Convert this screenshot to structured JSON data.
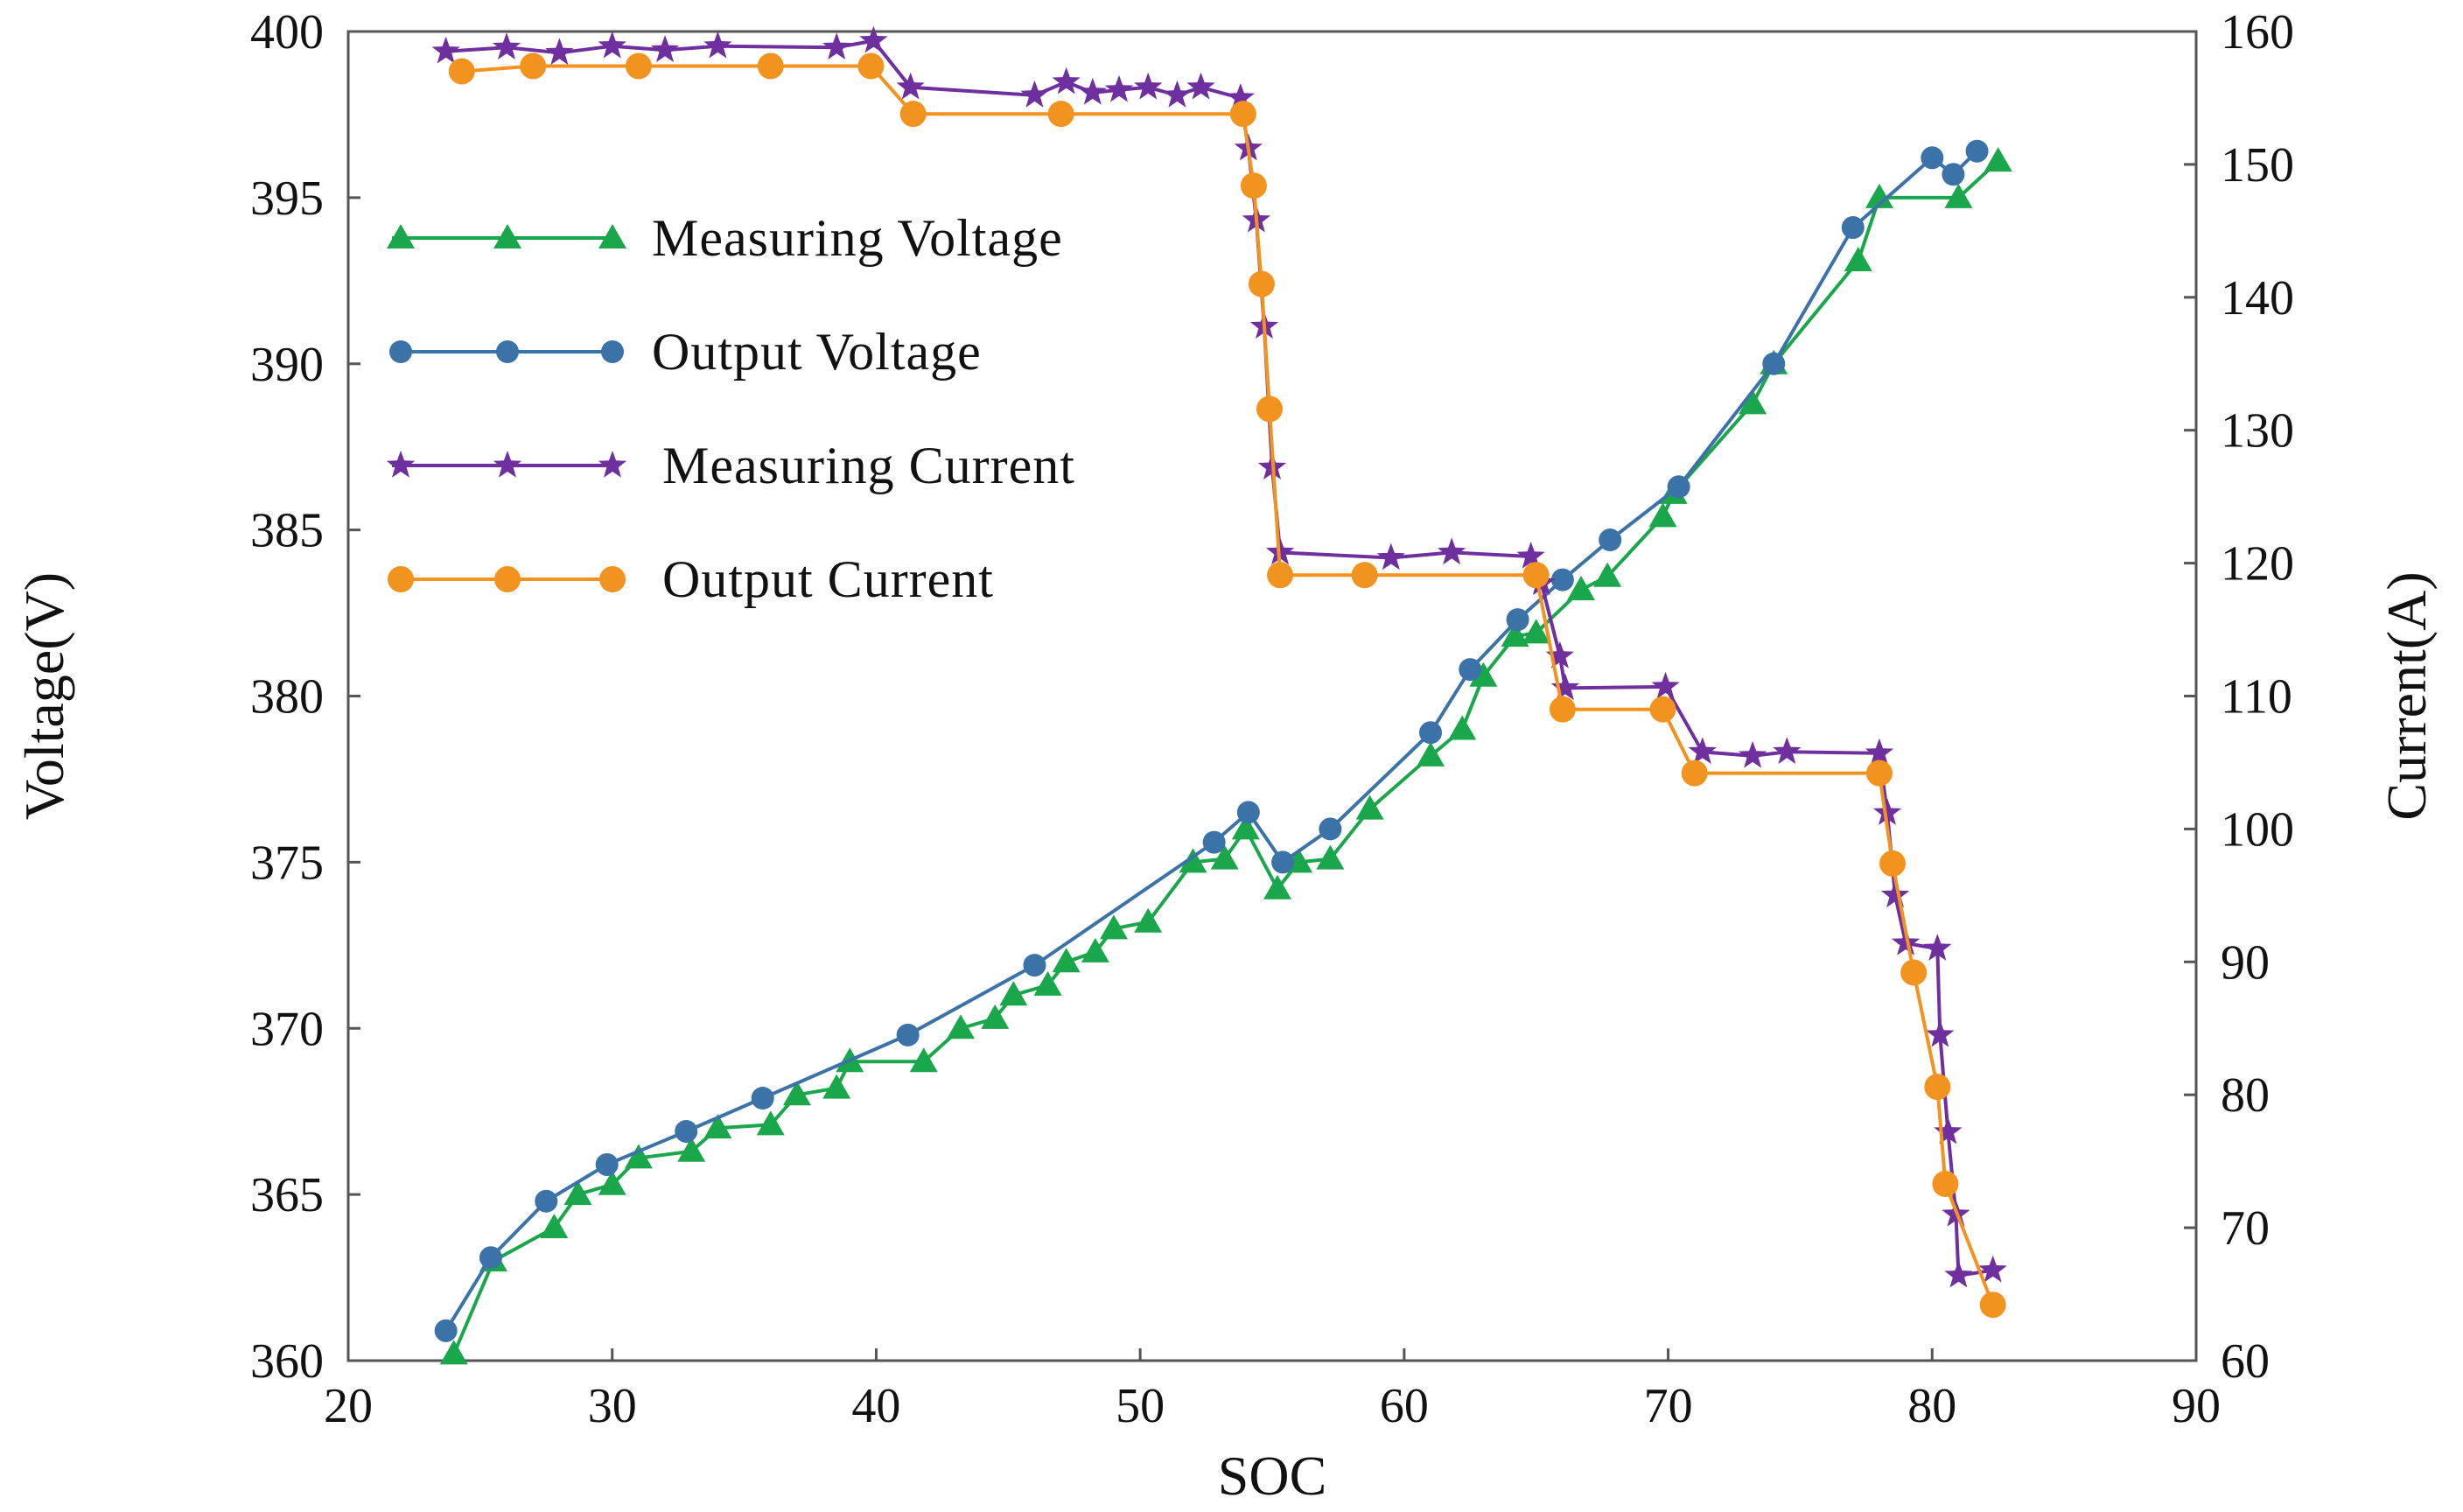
{
  "chart_data": {
    "type": "line",
    "title": "",
    "xlabel": "SOC",
    "ylabel_left": "Voltage(V)",
    "ylabel_right": "Current(A)",
    "xlim": [
      20,
      90
    ],
    "ylim_left": [
      360,
      400
    ],
    "ylim_right": [
      60,
      160
    ],
    "x_ticks": [
      "20",
      "30",
      "40",
      "50",
      "60",
      "70",
      "80",
      "90"
    ],
    "left_ticks": [
      "360",
      "365",
      "370",
      "375",
      "380",
      "385",
      "390",
      "395",
      "400"
    ],
    "right_ticks": [
      "60",
      "70",
      "80",
      "90",
      "100",
      "110",
      "120",
      "130",
      "140",
      "150",
      "160"
    ],
    "grid": false,
    "legend_position": "top-left",
    "series": [
      {
        "name": "Measuring Voltage",
        "axis": "left",
        "marker": "triangle",
        "color": "#1aa64a",
        "points": [
          [
            24,
            360.2
          ],
          [
            25.5,
            363
          ],
          [
            27.8,
            364
          ],
          [
            28.7,
            365
          ],
          [
            30,
            365.3
          ],
          [
            31,
            366.1
          ],
          [
            33,
            366.3
          ],
          [
            34,
            367
          ],
          [
            36,
            367.1
          ],
          [
            37,
            368
          ],
          [
            38.5,
            368.2
          ],
          [
            39,
            369
          ],
          [
            41.8,
            369
          ],
          [
            43.2,
            370
          ],
          [
            44.5,
            370.3
          ],
          [
            45.2,
            371
          ],
          [
            46.5,
            371.3
          ],
          [
            47.2,
            372
          ],
          [
            48.3,
            372.3
          ],
          [
            49,
            373
          ],
          [
            50.3,
            373.2
          ],
          [
            52,
            375
          ],
          [
            53.2,
            375.1
          ],
          [
            54,
            376
          ],
          [
            55.2,
            374.2
          ],
          [
            56,
            375
          ],
          [
            57.2,
            375.1
          ],
          [
            58.7,
            376.6
          ],
          [
            61,
            378.2
          ],
          [
            62.2,
            379
          ],
          [
            63,
            380.6
          ],
          [
            64.2,
            381.8
          ],
          [
            65,
            381.9
          ],
          [
            66.7,
            383.2
          ],
          [
            67.7,
            383.6
          ],
          [
            69.8,
            385.4
          ],
          [
            70.2,
            386.1
          ],
          [
            73.2,
            388.8
          ],
          [
            74,
            390
          ],
          [
            77.2,
            393.1
          ],
          [
            78,
            395
          ],
          [
            81,
            395
          ],
          [
            82.5,
            396.1
          ]
        ]
      },
      {
        "name": "Output Voltage",
        "axis": "left",
        "marker": "circle",
        "color": "#3b72a8",
        "points": [
          [
            23.7,
            360.9
          ],
          [
            25.4,
            363.1
          ],
          [
            27.5,
            364.8
          ],
          [
            29.8,
            365.9
          ],
          [
            32.8,
            366.9
          ],
          [
            35.7,
            367.9
          ],
          [
            41.2,
            369.8
          ],
          [
            46,
            371.9
          ],
          [
            52.8,
            375.6
          ],
          [
            54.1,
            376.5
          ],
          [
            55.4,
            375
          ],
          [
            57.2,
            376
          ],
          [
            61,
            378.9
          ],
          [
            62.5,
            380.8
          ],
          [
            64.3,
            382.3
          ],
          [
            66,
            383.5
          ],
          [
            67.8,
            384.7
          ],
          [
            70.4,
            386.3
          ],
          [
            74,
            390
          ],
          [
            77,
            394.1
          ],
          [
            80,
            396.2
          ],
          [
            80.8,
            395.7
          ],
          [
            81.7,
            396.4
          ]
        ]
      },
      {
        "name": "Measuring Current",
        "axis": "right",
        "marker": "star",
        "color": "#6f2f9e",
        "points": [
          [
            23.7,
            158.5
          ],
          [
            26,
            158.8
          ],
          [
            28,
            158.4
          ],
          [
            30,
            158.9
          ],
          [
            32,
            158.6
          ],
          [
            34,
            158.9
          ],
          [
            38.5,
            158.8
          ],
          [
            39.9,
            159.3
          ],
          [
            41.3,
            155.8
          ],
          [
            46,
            155.2
          ],
          [
            47.2,
            156.2
          ],
          [
            48.2,
            155.4
          ],
          [
            49.2,
            155.6
          ],
          [
            50.3,
            155.8
          ],
          [
            51.4,
            155.2
          ],
          [
            52.3,
            155.8
          ],
          [
            53.8,
            155
          ],
          [
            54.1,
            151.2
          ],
          [
            54.4,
            145.8
          ],
          [
            54.7,
            137.8
          ],
          [
            55,
            127.2
          ],
          [
            55.3,
            120.8
          ],
          [
            59.5,
            120.4
          ],
          [
            61.8,
            120.8
          ],
          [
            64.8,
            120.5
          ],
          [
            65.2,
            118.5
          ],
          [
            65.9,
            113
          ],
          [
            66.1,
            110.6
          ],
          [
            69.9,
            110.7
          ],
          [
            71.3,
            105.8
          ],
          [
            73.2,
            105.5
          ],
          [
            74.5,
            105.8
          ],
          [
            78,
            105.7
          ],
          [
            78.3,
            101.2
          ],
          [
            78.6,
            95
          ],
          [
            79,
            91.4
          ],
          [
            80.2,
            91
          ],
          [
            80.3,
            84.5
          ],
          [
            80.6,
            77.2
          ],
          [
            80.9,
            71
          ],
          [
            81,
            66.4
          ],
          [
            82.3,
            66.8
          ]
        ]
      },
      {
        "name": "Output Current",
        "axis": "right",
        "marker": "circle",
        "color": "#f2921f",
        "points": [
          [
            24.3,
            157
          ],
          [
            27,
            157.4
          ],
          [
            31,
            157.4
          ],
          [
            36,
            157.4
          ],
          [
            39.8,
            157.4
          ],
          [
            41.4,
            153.8
          ],
          [
            47,
            153.8
          ],
          [
            53.9,
            153.8
          ],
          [
            54.3,
            148.4
          ],
          [
            54.6,
            141
          ],
          [
            54.9,
            131.6
          ],
          [
            55.3,
            119.1
          ],
          [
            58.5,
            119.1
          ],
          [
            65,
            119.1
          ],
          [
            66,
            109
          ],
          [
            69.8,
            109
          ],
          [
            71,
            104.2
          ],
          [
            78,
            104.2
          ],
          [
            78.5,
            97.4
          ],
          [
            79.3,
            89.2
          ],
          [
            80.2,
            80.6
          ],
          [
            80.5,
            73.3
          ],
          [
            82.3,
            64.2
          ]
        ]
      }
    ]
  }
}
